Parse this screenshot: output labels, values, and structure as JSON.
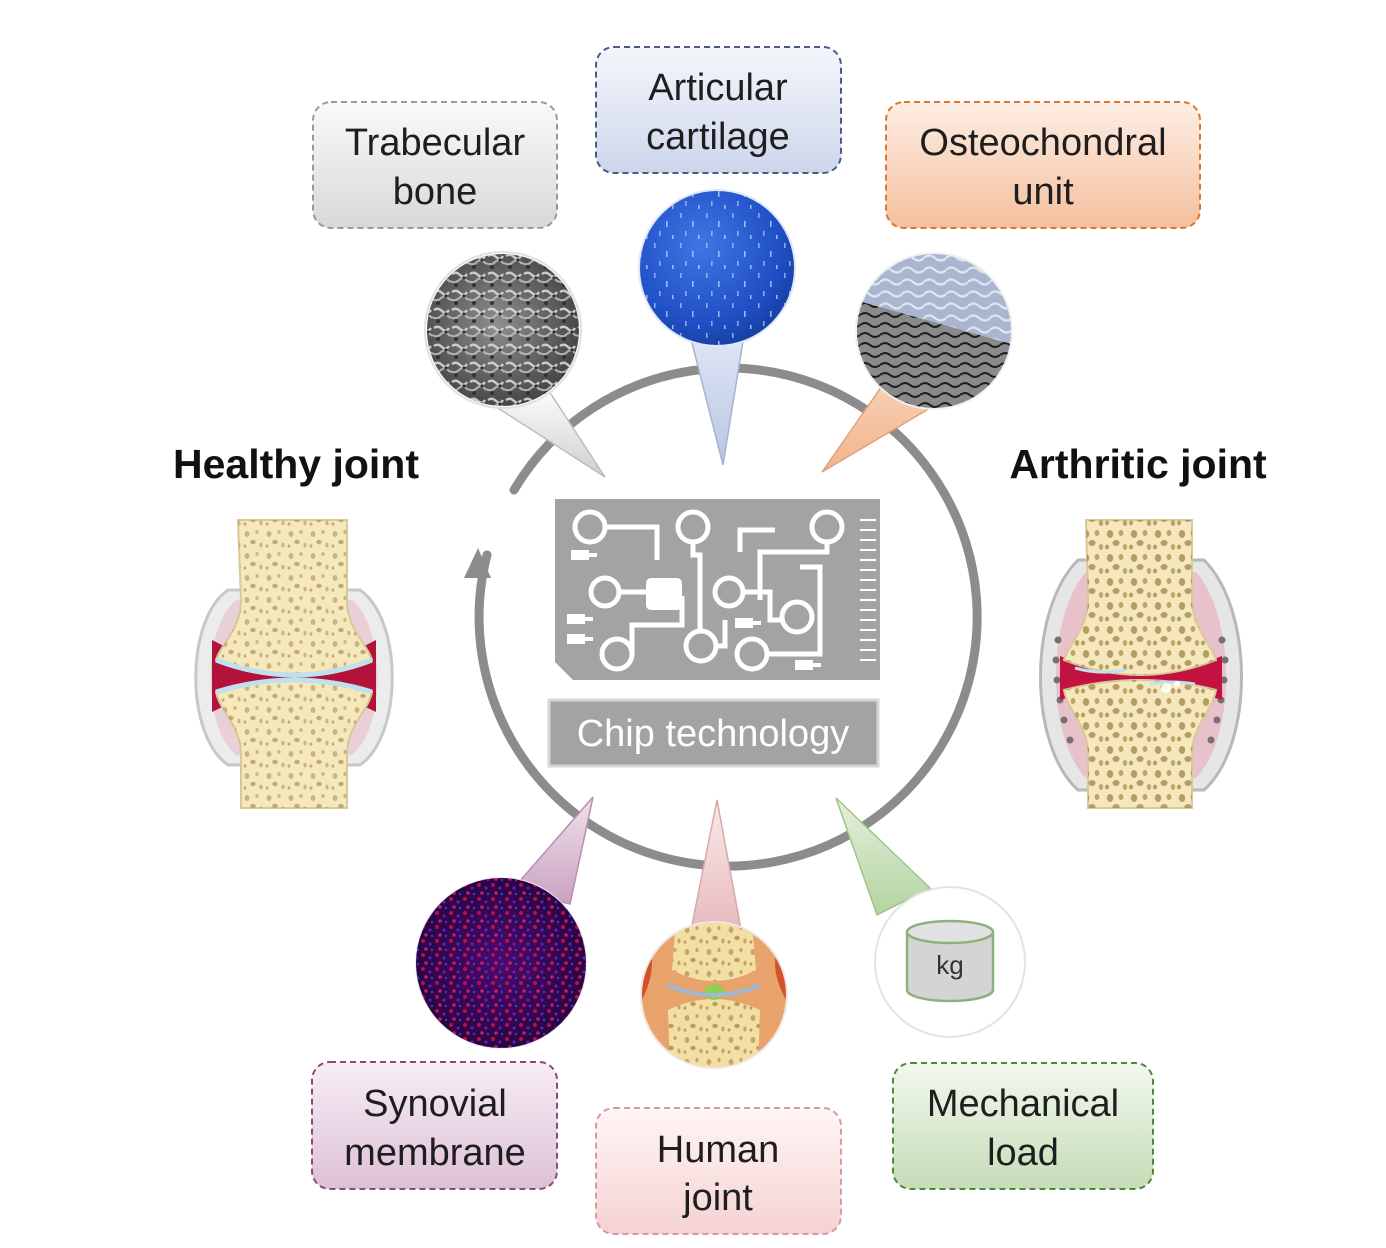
{
  "center": {
    "chip_label": "Chip technology"
  },
  "sides": {
    "left_title": "Healthy joint",
    "right_title": "Arthritic joint"
  },
  "labels": {
    "trabecular_bone": [
      "Trabecular",
      "bone"
    ],
    "articular_cartilage": [
      "Articular",
      "cartilage"
    ],
    "osteochondral_unit": [
      "Osteochondral",
      "unit"
    ],
    "synovial_membrane": [
      "Synovial",
      "membrane"
    ],
    "human_joint": [
      "Human",
      "joint"
    ],
    "mechanical_load": [
      "Mechanical",
      "load"
    ]
  },
  "weight_unit": "kg",
  "colors": {
    "circle_arrow": "#8c8c8c",
    "chip": "#a3a3a3",
    "trabecular_box": "#e2e2e2",
    "cartilage_box": "#d9e0f0",
    "osteochondral_box": "#f7c9ad",
    "synovial_box": "#e6cfe0",
    "human_box": "#f8dede",
    "mechanical_box": "#cfe3c4",
    "bone": "#f6e8bd",
    "bone_pores": "#b59a5a",
    "synovial_fluid": "#b3123a",
    "cartilage_line": "#bfe0ec"
  }
}
